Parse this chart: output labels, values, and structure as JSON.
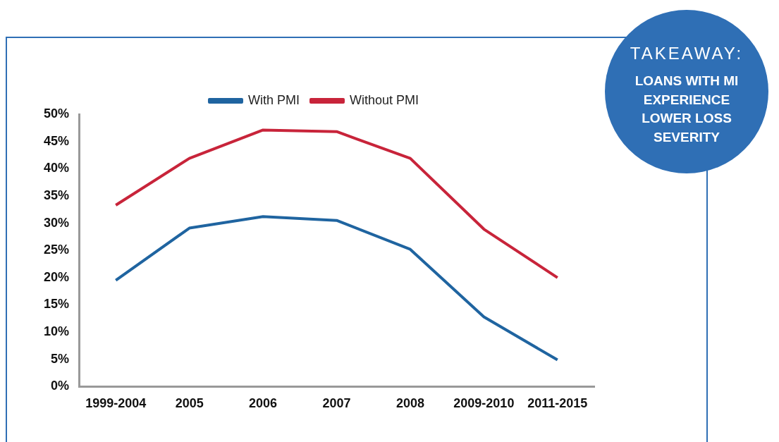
{
  "chart_data": {
    "type": "line",
    "categories": [
      "1999-2004",
      "2005",
      "2006",
      "2007",
      "2008",
      "2009-2010",
      "2011-2015"
    ],
    "series": [
      {
        "name": "With PMI",
        "color": "#1f64a0",
        "values": [
          19.5,
          29.1,
          31.2,
          30.5,
          25.2,
          12.8,
          4.9
        ]
      },
      {
        "name": "Without PMI",
        "color": "#c8243a",
        "values": [
          33.3,
          41.9,
          47.1,
          46.8,
          41.9,
          28.9,
          20
        ]
      }
    ],
    "ylim": [
      0,
      50
    ],
    "yticks": [
      {
        "value": 0,
        "label": "0%"
      },
      {
        "value": 5,
        "label": "5%"
      },
      {
        "value": 10,
        "label": "10%"
      },
      {
        "value": 15,
        "label": "15%"
      },
      {
        "value": 20,
        "label": "20%"
      },
      {
        "value": 25,
        "label": "25%"
      },
      {
        "value": 30,
        "label": "30%"
      },
      {
        "value": 35,
        "label": "35%"
      },
      {
        "value": 40,
        "label": "40%"
      },
      {
        "value": 45,
        "label": "45%"
      },
      {
        "value": 50,
        "label": "50%"
      }
    ],
    "grid": false,
    "legend": "top",
    "marker": "none",
    "line_style": "solid",
    "annotations": [
      "TAKEAWAY:",
      "LOANS WITH MI EXPERIENCE LOWER LOSS SEVERITY"
    ]
  }
}
